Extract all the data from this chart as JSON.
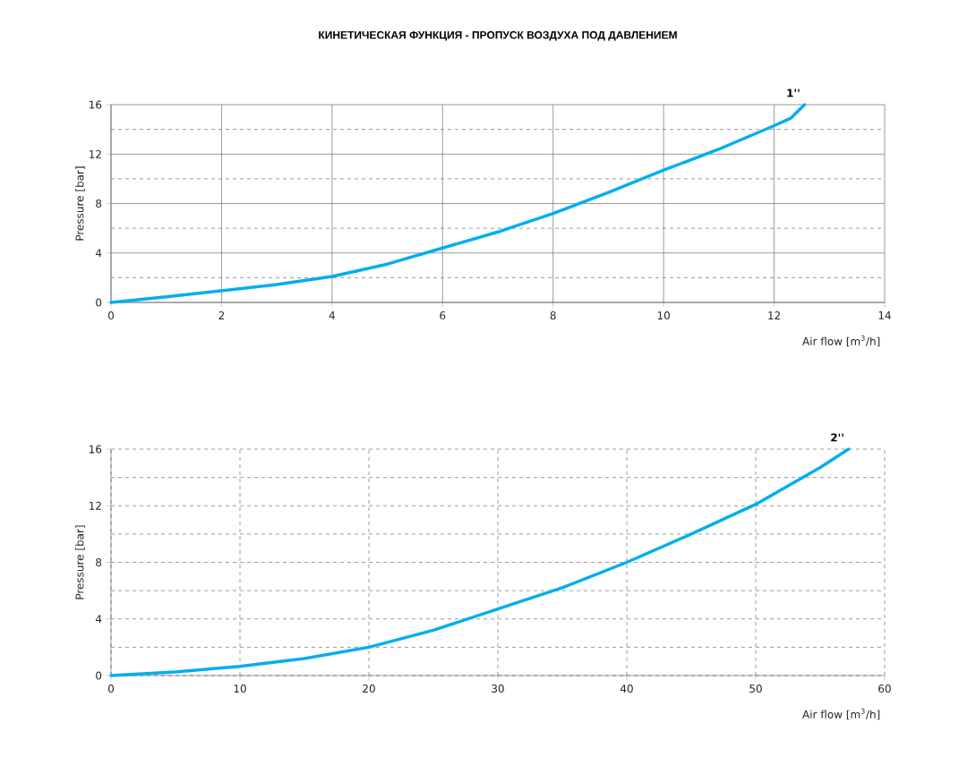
{
  "chart_data": [
    {
      "type": "line",
      "title": "КИНЕТИЧЕСКАЯ ФУНКЦИЯ - ПРОПУСК ВОЗДУХА ПОД ДАВЛЕНИЕМ",
      "xlabel": "Air flow  [m$^{3}$/h]",
      "ylabel": "Pressure [bar]",
      "x": [
        0,
        1,
        2,
        3,
        4,
        5,
        6,
        7,
        8,
        9,
        10,
        11,
        12,
        12.3,
        12.55
      ],
      "series": [
        {
          "name": "1''",
          "color": "#00aeef",
          "values": [
            0,
            0.45,
            0.95,
            1.45,
            2.1,
            3.1,
            4.4,
            5.7,
            7.2,
            8.9,
            10.7,
            12.4,
            14.3,
            14.9,
            16
          ]
        }
      ],
      "xlim": [
        0,
        14
      ],
      "xticks": [
        0,
        2,
        4,
        6,
        8,
        10,
        12,
        14
      ],
      "ylim": [
        0,
        16
      ],
      "yticks": [
        0,
        {
          "value": 2,
          "label": null
        },
        4,
        {
          "value": 6,
          "label": null
        },
        8,
        {
          "value": 10,
          "label": null
        },
        12,
        {
          "value": 14,
          "label": null
        },
        16
      ],
      "grid": true,
      "legend": false,
      "marker": "none",
      "line_style": "solid"
    },
    {
      "type": "line",
      "xlabel": "Air flow  [m$^{3}$/h]",
      "ylabel": "Pressure [bar]",
      "x": [
        0,
        5,
        10,
        15,
        20,
        25,
        30,
        35,
        40,
        45,
        50,
        55,
        57.2
      ],
      "series": [
        {
          "name": "2''",
          "color": "#00aeef",
          "values": [
            0,
            0.25,
            0.65,
            1.2,
            2,
            3.2,
            4.7,
            6.2,
            8,
            10,
            12.1,
            14.7,
            16
          ]
        }
      ],
      "xlim": [
        0,
        60
      ],
      "xticks": [
        0,
        10,
        20,
        30,
        40,
        50,
        60
      ],
      "ylim": [
        0,
        16
      ],
      "yticks": [
        0,
        {
          "value": 2,
          "label": null
        },
        4,
        {
          "value": 6,
          "label": null
        },
        8,
        {
          "value": 10,
          "label": null
        },
        12,
        {
          "value": 14,
          "label": null
        },
        16
      ],
      "grid": true,
      "legend": false,
      "marker": "none",
      "line_style": "solid"
    }
  ]
}
